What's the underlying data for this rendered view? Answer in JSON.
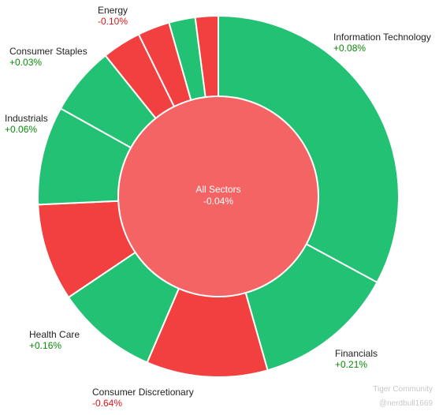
{
  "colors": {
    "positive": "#22c173",
    "negative": "#f23f3f",
    "center": "#f56464",
    "positive_text": "#0a8a0a",
    "negative_text": "#e0161b"
  },
  "chart_data": {
    "type": "pie",
    "center": {
      "name": "All Sectors",
      "change": "-0.04%",
      "direction": "negative"
    },
    "sectors": [
      {
        "name": "Information Technology",
        "change": "+0.08%",
        "direction": "positive",
        "share": 0.321
      },
      {
        "name": "Financials",
        "change": "+0.21%",
        "direction": "positive",
        "share": 0.124
      },
      {
        "name": "",
        "change": "",
        "direction": "negative",
        "share": 0.106
      },
      {
        "name": "",
        "change": "",
        "direction": "positive",
        "share": 0.089
      },
      {
        "name": "",
        "change": "",
        "direction": "negative",
        "share": 0.085
      },
      {
        "name": "",
        "change": "",
        "direction": "positive",
        "share": 0.086
      },
      {
        "name": "",
        "change": "",
        "direction": "positive",
        "share": 0.06
      },
      {
        "name": "",
        "change": "",
        "direction": "negative",
        "share": 0.034
      },
      {
        "name": "",
        "change": "",
        "direction": "negative",
        "share": 0.028
      },
      {
        "name": "",
        "change": "",
        "direction": "positive",
        "share": 0.023
      },
      {
        "name": "",
        "change": "",
        "direction": "negative",
        "share": 0.02
      }
    ],
    "labels": {
      "consumer_discretionary": {
        "name": "Consumer Discretionary",
        "change": "-0.64%",
        "direction": "negative"
      },
      "health_care": {
        "name": "Health Care",
        "change": "+0.16%",
        "direction": "positive"
      },
      "industrials": {
        "name": "Industrials",
        "change": "+0.06%",
        "direction": "positive"
      },
      "consumer_staples": {
        "name": "Consumer Staples",
        "change": "+0.03%",
        "direction": "positive"
      },
      "energy": {
        "name": "Energy",
        "change": "-0.10%",
        "direction": "negative"
      }
    }
  },
  "watermark": {
    "brand": "Tiger Community",
    "user": "@nerdbull1669"
  }
}
